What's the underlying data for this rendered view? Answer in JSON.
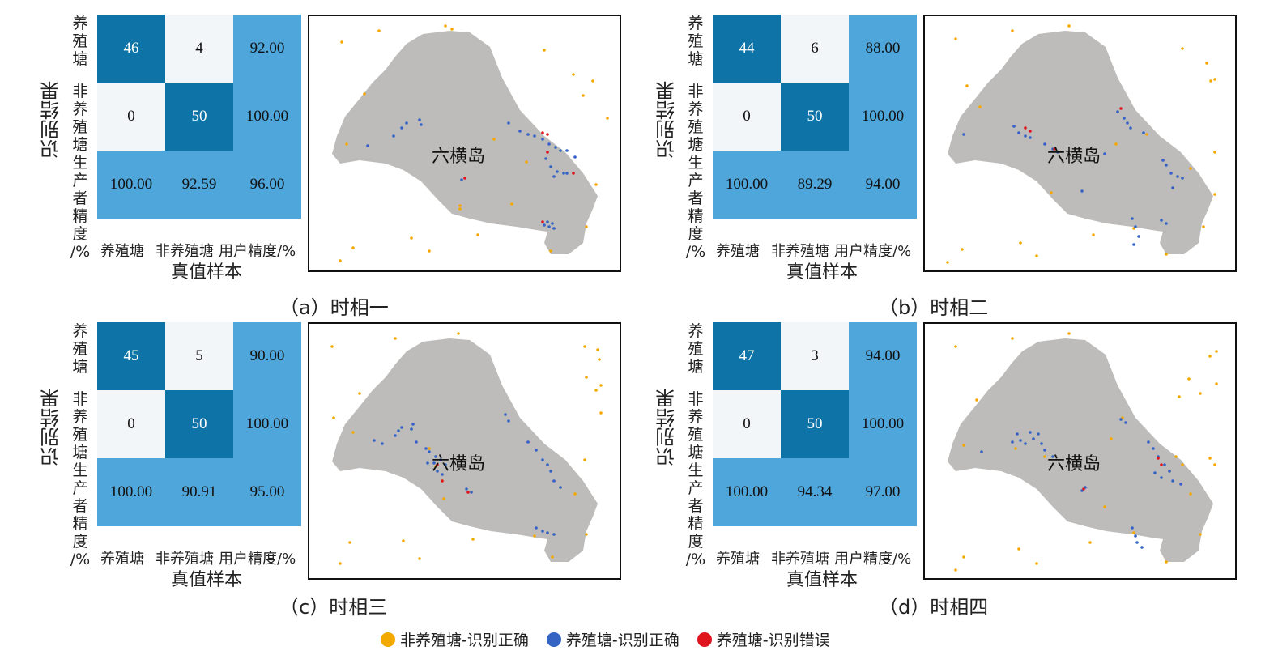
{
  "chart_data": [
    {
      "type": "heatmap",
      "caption": "（a）时相一",
      "island_label": "六横岛",
      "ylabel": "识别结果",
      "xlabel": "真值样本",
      "row_labels": [
        "养殖塘",
        "非养殖塘",
        "生产者精度/%"
      ],
      "col_labels": [
        "养殖塘",
        "非养殖塘",
        "用户精度/%"
      ],
      "cells": [
        [
          "46",
          "4",
          "92.00"
        ],
        [
          "0",
          "50",
          "100.00"
        ],
        [
          "100.00",
          "92.59",
          "96.00"
        ]
      ]
    },
    {
      "type": "heatmap",
      "caption": "（b）时相二",
      "island_label": "六横岛",
      "ylabel": "识别结果",
      "xlabel": "真值样本",
      "row_labels": [
        "养殖塘",
        "非养殖塘",
        "生产者精度/%"
      ],
      "col_labels": [
        "养殖塘",
        "非养殖塘",
        "用户精度/%"
      ],
      "cells": [
        [
          "44",
          "6",
          "88.00"
        ],
        [
          "0",
          "50",
          "100.00"
        ],
        [
          "100.00",
          "89.29",
          "94.00"
        ]
      ]
    },
    {
      "type": "heatmap",
      "caption": "（c）时相三",
      "island_label": "六横岛",
      "ylabel": "识别结果",
      "xlabel": "真值样本",
      "row_labels": [
        "养殖塘",
        "非养殖塘",
        "生产者精度/%"
      ],
      "col_labels": [
        "养殖塘",
        "非养殖塘",
        "用户精度/%"
      ],
      "cells": [
        [
          "45",
          "5",
          "90.00"
        ],
        [
          "0",
          "50",
          "100.00"
        ],
        [
          "100.00",
          "90.91",
          "95.00"
        ]
      ]
    },
    {
      "type": "heatmap",
      "caption": "（d）时相四",
      "island_label": "六横岛",
      "ylabel": "识别结果",
      "xlabel": "真值样本",
      "row_labels": [
        "养殖塘",
        "非养殖塘",
        "生产者精度/%"
      ],
      "col_labels": [
        "养殖塘",
        "非养殖塘",
        "用户精度/%"
      ],
      "cells": [
        [
          "47",
          "3",
          "94.00"
        ],
        [
          "0",
          "50",
          "100.00"
        ],
        [
          "100.00",
          "94.34",
          "97.00"
        ]
      ]
    }
  ],
  "legend": [
    {
      "label": "非养殖塘-识别正确",
      "color": "#f2a900"
    },
    {
      "label": "养殖塘-识别正确",
      "color": "#3563c4"
    },
    {
      "label": "养殖塘-识别错误",
      "color": "#e0141c"
    }
  ],
  "colors": {
    "cm_dark": "#0e73a6",
    "cm_light": "#f3f6f9",
    "cm_mid": "#4ea6db",
    "island": "#bdbcbb"
  }
}
